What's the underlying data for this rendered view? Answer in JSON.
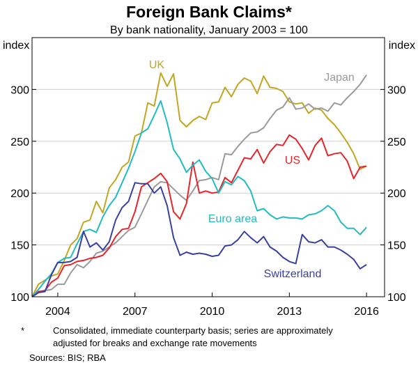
{
  "chart_data": {
    "type": "line",
    "title": "Foreign Bank Claims*",
    "subtitle": "By bank nationality, January 2003 = 100",
    "ylabel_left": "index",
    "ylabel_right": "index",
    "ylim": [
      100,
      350
    ],
    "yticks": [
      100,
      150,
      200,
      250,
      300
    ],
    "xlim": [
      2003,
      2016.7
    ],
    "xticks": [
      2004,
      2007,
      2010,
      2013,
      2016
    ],
    "colors": {
      "UK": "#c3a521",
      "Japan": "#9a9a9a",
      "US": "#e8242a",
      "Euro area": "#1fbcc1",
      "Switzerland": "#3a3fa3"
    },
    "series": [
      {
        "name": "UK",
        "x": [
          2003.0,
          2003.25,
          2003.5,
          2003.75,
          2004.0,
          2004.25,
          2004.5,
          2004.75,
          2005.0,
          2005.25,
          2005.5,
          2005.75,
          2006.0,
          2006.25,
          2006.5,
          2006.75,
          2007.0,
          2007.25,
          2007.5,
          2007.75,
          2008.0,
          2008.25,
          2008.5,
          2008.75,
          2009.0,
          2009.25,
          2009.5,
          2009.75,
          2010.0,
          2010.25,
          2010.5,
          2010.75,
          2011.0,
          2011.25,
          2011.5,
          2011.75,
          2012.0,
          2012.25,
          2012.5,
          2012.75,
          2013.0,
          2013.25,
          2013.5,
          2013.75,
          2014.0,
          2014.25,
          2014.5,
          2014.75,
          2015.0,
          2015.25,
          2015.5,
          2015.75,
          2016.0
        ],
        "values": [
          100,
          112,
          116,
          120,
          122,
          135,
          150,
          156,
          172,
          174,
          192,
          181,
          205,
          213,
          225,
          230,
          255,
          258,
          287,
          284,
          316,
          303,
          315,
          270,
          264,
          270,
          274,
          271,
          287,
          288,
          302,
          293,
          305,
          311,
          308,
          296,
          313,
          302,
          301,
          298,
          288,
          286,
          287,
          277,
          282,
          280,
          272,
          266,
          258,
          249,
          238,
          223,
          226
        ]
      },
      {
        "name": "Japan",
        "x": [
          2003.0,
          2003.25,
          2003.5,
          2003.75,
          2004.0,
          2004.25,
          2004.5,
          2004.75,
          2005.0,
          2005.25,
          2005.5,
          2005.75,
          2006.0,
          2006.25,
          2006.5,
          2006.75,
          2007.0,
          2007.25,
          2007.5,
          2007.75,
          2008.0,
          2008.25,
          2008.5,
          2008.75,
          2009.0,
          2009.25,
          2009.5,
          2009.75,
          2010.0,
          2010.25,
          2010.5,
          2010.75,
          2011.0,
          2011.25,
          2011.5,
          2011.75,
          2012.0,
          2012.25,
          2012.5,
          2012.75,
          2013.0,
          2013.25,
          2013.5,
          2013.75,
          2014.0,
          2014.25,
          2014.5,
          2014.75,
          2015.0,
          2015.25,
          2015.5,
          2015.75,
          2016.0
        ],
        "values": [
          100,
          104,
          106,
          107,
          112,
          112,
          123,
          131,
          128,
          134,
          142,
          144,
          148,
          152,
          158,
          164,
          167,
          180,
          193,
          206,
          211,
          210,
          204,
          198,
          193,
          202,
          212,
          213,
          215,
          213,
          238,
          237,
          245,
          252,
          258,
          259,
          263,
          272,
          280,
          283,
          292,
          281,
          282,
          286,
          281,
          282,
          279,
          287,
          285,
          292,
          298,
          305,
          314
        ]
      },
      {
        "name": "US",
        "x": [
          2003.0,
          2003.25,
          2003.5,
          2003.75,
          2004.0,
          2004.25,
          2004.5,
          2004.75,
          2005.0,
          2005.25,
          2005.5,
          2005.75,
          2006.0,
          2006.25,
          2006.5,
          2006.75,
          2007.0,
          2007.25,
          2007.5,
          2007.75,
          2008.0,
          2008.25,
          2008.5,
          2008.75,
          2009.0,
          2009.25,
          2009.5,
          2009.75,
          2010.0,
          2010.25,
          2010.5,
          2010.75,
          2011.0,
          2011.25,
          2011.5,
          2011.75,
          2012.0,
          2012.25,
          2012.5,
          2012.75,
          2013.0,
          2013.25,
          2013.5,
          2013.75,
          2014.0,
          2014.25,
          2014.5,
          2014.75,
          2015.0,
          2015.25,
          2015.5,
          2015.75,
          2016.0
        ],
        "values": [
          100,
          105,
          106,
          114,
          118,
          130,
          131,
          134,
          135,
          137,
          138,
          140,
          147,
          158,
          165,
          166,
          182,
          206,
          210,
          214,
          219,
          211,
          182,
          175,
          190,
          230,
          200,
          202,
          200,
          201,
          215,
          210,
          222,
          234,
          233,
          242,
          229,
          240,
          247,
          246,
          256,
          252,
          243,
          232,
          246,
          253,
          236,
          238,
          239,
          231,
          214,
          225,
          226
        ]
      },
      {
        "name": "Euro area",
        "x": [
          2003.0,
          2003.25,
          2003.5,
          2003.75,
          2004.0,
          2004.25,
          2004.5,
          2004.75,
          2005.0,
          2005.25,
          2005.5,
          2005.75,
          2006.0,
          2006.25,
          2006.5,
          2006.75,
          2007.0,
          2007.25,
          2007.5,
          2007.75,
          2008.0,
          2008.25,
          2008.5,
          2008.75,
          2009.0,
          2009.25,
          2009.5,
          2009.75,
          2010.0,
          2010.25,
          2010.5,
          2010.75,
          2011.0,
          2011.25,
          2011.5,
          2011.75,
          2012.0,
          2012.25,
          2012.5,
          2012.75,
          2013.0,
          2013.25,
          2013.5,
          2013.75,
          2014.0,
          2014.25,
          2014.5,
          2014.75,
          2015.0,
          2015.25,
          2015.5,
          2015.75,
          2016.0
        ],
        "values": [
          100,
          107,
          115,
          122,
          133,
          137,
          138,
          151,
          163,
          165,
          162,
          177,
          188,
          196,
          210,
          224,
          240,
          258,
          262,
          275,
          289,
          268,
          242,
          233,
          220,
          227,
          232,
          221,
          214,
          200,
          211,
          208,
          216,
          212,
          202,
          183,
          185,
          179,
          175,
          177,
          176,
          176,
          175,
          179,
          180,
          183,
          188,
          183,
          172,
          166,
          166,
          160,
          167
        ]
      },
      {
        "name": "Switzerland",
        "x": [
          2003.0,
          2003.25,
          2003.5,
          2003.75,
          2004.0,
          2004.25,
          2004.5,
          2004.75,
          2005.0,
          2005.25,
          2005.5,
          2005.75,
          2006.0,
          2006.25,
          2006.5,
          2006.75,
          2007.0,
          2007.25,
          2007.5,
          2007.75,
          2008.0,
          2008.25,
          2008.5,
          2008.75,
          2009.0,
          2009.25,
          2009.5,
          2009.75,
          2010.0,
          2010.25,
          2010.5,
          2010.75,
          2011.0,
          2011.25,
          2011.5,
          2011.75,
          2012.0,
          2012.25,
          2012.5,
          2012.75,
          2013.0,
          2013.25,
          2013.5,
          2013.75,
          2014.0,
          2014.25,
          2014.5,
          2014.75,
          2015.0,
          2015.25,
          2015.5,
          2015.75,
          2016.0
        ],
        "values": [
          100,
          104,
          105,
          121,
          133,
          133,
          134,
          138,
          163,
          148,
          152,
          145,
          153,
          174,
          186,
          192,
          210,
          209,
          209,
          200,
          206,
          188,
          157,
          140,
          143,
          141,
          142,
          141,
          139,
          140,
          149,
          150,
          155,
          163,
          157,
          152,
          158,
          148,
          144,
          138,
          134,
          132,
          160,
          153,
          152,
          155,
          148,
          148,
          145,
          141,
          136,
          127,
          131
        ]
      }
    ],
    "series_labels": [
      "UK",
      "Japan",
      "US",
      "Euro area",
      "Switzerland"
    ]
  },
  "notes": {
    "footnote_marker": "*",
    "footnote_line1": "Consolidated, immediate counterparty basis; series are approximately",
    "footnote_line2": "adjusted for breaks and exchange rate movements",
    "sources": "Sources:  BIS; RBA"
  }
}
